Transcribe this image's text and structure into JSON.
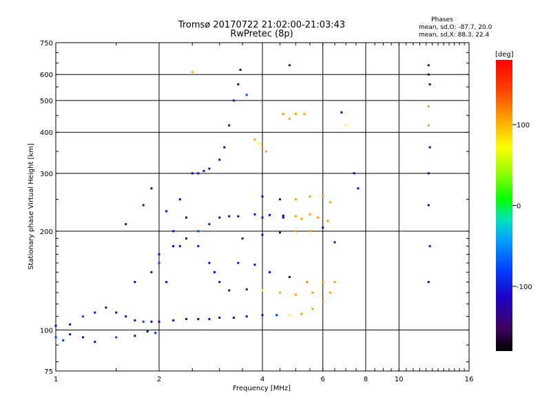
{
  "chart_data": {
    "type": "scatter",
    "title": "Tromsø 20170722 21:02:00-21:03:43",
    "subtitle": "RwPretec (8p)",
    "xlabel": "Frequency [MHz]",
    "ylabel": "Stationary phase Virtual Height [km]",
    "x_scale": "log",
    "y_scale": "log",
    "xlim": [
      1,
      16
    ],
    "ylim": [
      75,
      750
    ],
    "x_ticks": [
      1,
      2,
      4,
      6,
      8,
      10,
      16
    ],
    "y_ticks": [
      75,
      100,
      200,
      300,
      400,
      500,
      600,
      750
    ],
    "grid": true,
    "phase_stats": {
      "header": "Phases",
      "line_o": "mean, sd,O: -87.7, 20.0",
      "line_x": "mean, sd,X: 88.3, 22.4"
    },
    "colorbar": {
      "label": "[deg]",
      "min": -180,
      "max": 180,
      "ticks": [
        100,
        0,
        -100
      ],
      "colors": [
        "#000000",
        "#400060",
        "#2000c0",
        "#0040ff",
        "#00c0ff",
        "#00e080",
        "#00ff00",
        "#c0ff00",
        "#ffff00",
        "#ffa000",
        "#ff4000",
        "#ff0000"
      ]
    },
    "series": [
      {
        "values": [
          [
            1.0,
            103,
            -110
          ],
          [
            1.1,
            104,
            -105
          ],
          [
            1.2,
            110,
            -95
          ],
          [
            1.3,
            113,
            -100
          ],
          [
            1.4,
            117,
            -120
          ],
          [
            1.5,
            113,
            -110
          ],
          [
            1.6,
            110,
            -100
          ],
          [
            1.7,
            107,
            -110
          ],
          [
            1.8,
            106,
            -95
          ],
          [
            1.9,
            106,
            -110
          ],
          [
            2.0,
            106,
            -100
          ],
          [
            2.2,
            107,
            -110
          ],
          [
            2.4,
            108,
            -100
          ],
          [
            2.6,
            108,
            -115
          ],
          [
            2.8,
            108,
            -100
          ],
          [
            3.0,
            109,
            -110
          ],
          [
            3.3,
            109,
            -120
          ],
          [
            3.6,
            110,
            -100
          ],
          [
            4.0,
            111,
            -105
          ],
          [
            4.4,
            111,
            -90
          ],
          [
            4.8,
            111,
            80
          ],
          [
            5.2,
            112,
            100
          ],
          [
            5.6,
            116,
            110
          ],
          [
            6.0,
            122,
            120
          ],
          [
            6.3,
            130,
            125
          ]
        ]
      },
      {
        "values": [
          [
            1.0,
            95,
            -70
          ],
          [
            1.05,
            93,
            -90
          ],
          [
            1.1,
            97,
            -100
          ],
          [
            1.2,
            95,
            -110
          ],
          [
            1.3,
            92,
            -100
          ],
          [
            1.5,
            95,
            -80
          ],
          [
            1.7,
            96,
            -120
          ],
          [
            1.85,
            99,
            -100
          ],
          [
            1.95,
            98,
            -90
          ]
        ]
      },
      {
        "values": [
          [
            2.0,
            170,
            -110
          ],
          [
            2.2,
            180,
            -100
          ],
          [
            2.4,
            190,
            -120
          ],
          [
            2.6,
            200,
            -90
          ],
          [
            2.8,
            210,
            -110
          ],
          [
            3.0,
            220,
            -100
          ],
          [
            3.2,
            222,
            -110
          ],
          [
            3.4,
            222,
            -120
          ],
          [
            3.8,
            225,
            -100
          ],
          [
            4.2,
            224,
            -110
          ],
          [
            4.6,
            223,
            -100
          ],
          [
            5.0,
            222,
            100
          ],
          [
            5.5,
            225,
            110
          ]
        ]
      },
      {
        "values": [
          [
            2.5,
            300,
            -100
          ],
          [
            2.6,
            300,
            -110
          ],
          [
            2.7,
            305,
            -120
          ],
          [
            2.8,
            310,
            -100
          ],
          [
            3.0,
            330,
            -110
          ],
          [
            3.1,
            360,
            -100
          ],
          [
            3.2,
            420,
            -120
          ],
          [
            3.3,
            500,
            -110
          ],
          [
            3.4,
            560,
            -120
          ],
          [
            3.45,
            620,
            -100
          ],
          [
            3.6,
            520,
            -90
          ]
        ]
      },
      {
        "values": [
          [
            3.8,
            380,
            110
          ],
          [
            3.9,
            370,
            90
          ],
          [
            4.0,
            360,
            100
          ],
          [
            4.1,
            350,
            110
          ]
        ]
      },
      {
        "values": [
          [
            3.4,
            160,
            -110
          ],
          [
            3.8,
            158,
            -100
          ],
          [
            4.2,
            150,
            -120
          ],
          [
            4.8,
            145,
            -100
          ],
          [
            5.4,
            140,
            -110
          ],
          [
            6.0,
            140,
            100
          ],
          [
            6.5,
            140,
            110
          ]
        ]
      },
      {
        "values": [
          [
            3.2,
            132,
            -110
          ],
          [
            3.6,
            133,
            -100
          ],
          [
            4.0,
            132,
            90
          ],
          [
            4.5,
            130,
            100
          ],
          [
            5.0,
            128,
            110
          ],
          [
            5.6,
            130,
            105
          ]
        ]
      },
      {
        "values": [
          [
            3.5,
            190,
            -100
          ],
          [
            4.0,
            195,
            -110
          ],
          [
            4.5,
            198,
            -100
          ],
          [
            5.0,
            200,
            100
          ],
          [
            5.5,
            200,
            110
          ],
          [
            6.0,
            205,
            -110
          ],
          [
            6.5,
            185,
            -100
          ]
        ]
      },
      {
        "values": [
          [
            4.0,
            255,
            -100
          ],
          [
            4.5,
            250,
            -110
          ],
          [
            5.0,
            250,
            105
          ],
          [
            5.5,
            255,
            110
          ],
          [
            6.0,
            255,
            100
          ],
          [
            6.3,
            245,
            115
          ]
        ]
      },
      {
        "values": [
          [
            4.0,
            220,
            -110
          ],
          [
            4.6,
            220,
            -100
          ],
          [
            5.2,
            218,
            110
          ],
          [
            5.8,
            220,
            105
          ],
          [
            6.2,
            215,
            110
          ]
        ]
      },
      {
        "values": [
          [
            12.2,
            640,
            -100
          ],
          [
            12.2,
            600,
            -110
          ],
          [
            12.3,
            560,
            -120
          ],
          [
            12.2,
            480,
            100
          ],
          [
            12.2,
            420,
            110
          ],
          [
            12.3,
            360,
            -100
          ],
          [
            12.2,
            300,
            -110
          ],
          [
            12.2,
            240,
            -100
          ],
          [
            12.3,
            180,
            -110
          ],
          [
            12.2,
            140,
            -100
          ]
        ]
      },
      {
        "values": [
          [
            1.6,
            210,
            -110
          ],
          [
            1.8,
            240,
            -100
          ],
          [
            1.9,
            270,
            -120
          ],
          [
            2.1,
            230,
            -100
          ],
          [
            2.2,
            200,
            -110
          ],
          [
            2.3,
            180,
            -100
          ],
          [
            1.7,
            140,
            -110
          ],
          [
            1.9,
            150,
            -100
          ],
          [
            2.0,
            160,
            -95
          ],
          [
            2.1,
            140,
            -110
          ],
          [
            2.3,
            250,
            -100
          ],
          [
            2.4,
            220,
            -110
          ],
          [
            2.6,
            180,
            -100
          ],
          [
            2.8,
            160,
            -110
          ],
          [
            2.9,
            150,
            -100
          ],
          [
            3.0,
            140,
            -110
          ]
        ]
      },
      {
        "values": [
          [
            4.6,
            455,
            110
          ],
          [
            4.8,
            440,
            100
          ],
          [
            5.0,
            455,
            100
          ],
          [
            5.3,
            455,
            105
          ],
          [
            7.0,
            420,
            90
          ],
          [
            7.4,
            300,
            -100
          ],
          [
            7.6,
            270,
            -110
          ],
          [
            4.8,
            640,
            -100
          ],
          [
            2.5,
            610,
            130
          ],
          [
            6.8,
            460,
            -110
          ],
          [
            5.4,
            140,
            110
          ]
        ]
      }
    ]
  }
}
